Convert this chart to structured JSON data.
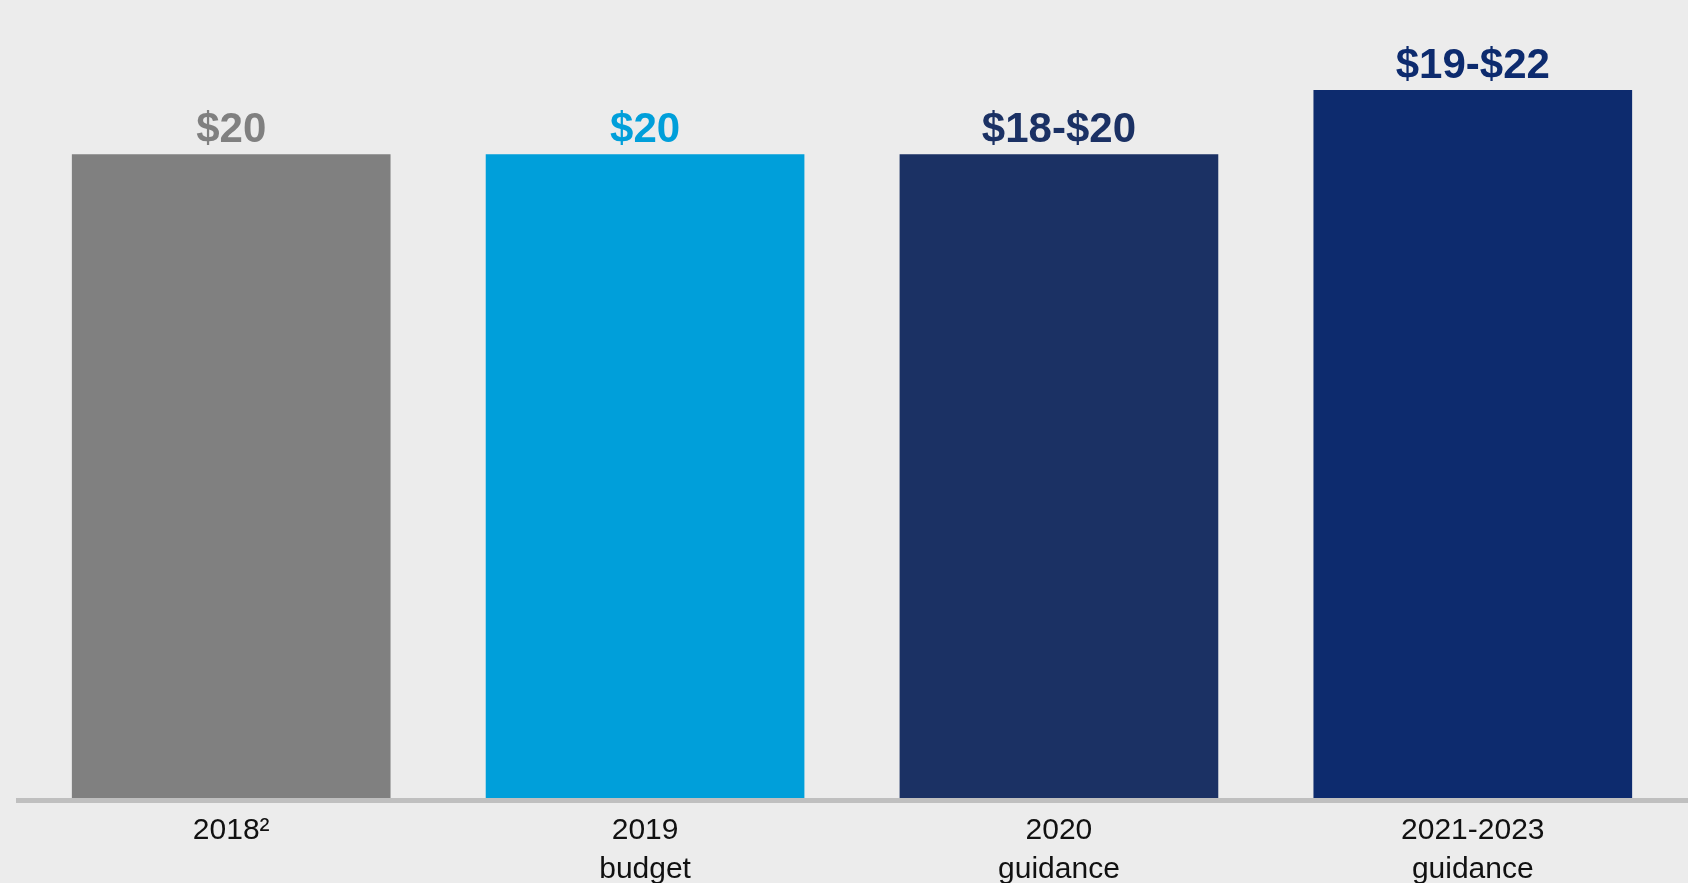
{
  "chart_data": {
    "type": "bar",
    "categories": [
      "2018²",
      "2019\nbudget",
      "2020\nguidance",
      "2021-2023\nguidance"
    ],
    "values": [
      20,
      20,
      20,
      22
    ],
    "colors": [
      "#808080",
      "#009fda",
      "#1b3164",
      "#0d2b6e"
    ],
    "value_labels": [
      "$20",
      "$20",
      "$18-$20",
      "$19-$22"
    ],
    "grid": false,
    "legend": false
  }
}
